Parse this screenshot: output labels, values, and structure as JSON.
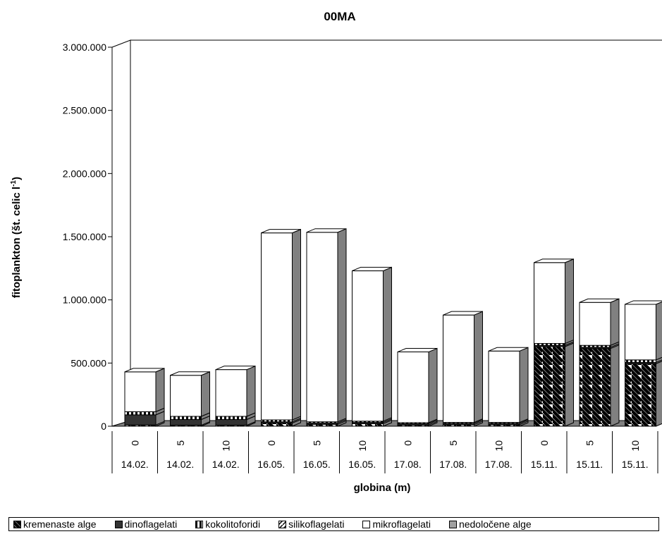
{
  "chart_data": {
    "type": "bar",
    "stacked": true,
    "three_d": true,
    "title": "00MA",
    "xlabel": "globina (m)",
    "ylabel": "fitoplankton (št. celic l",
    "ylabel_sup": "-1",
    "ylabel_close": ")",
    "ylim": [
      0,
      3000000
    ],
    "yticks": [
      "0",
      "500.000",
      "1.000.000",
      "1.500.000",
      "2.000.000",
      "2.500.000",
      "3.000.000"
    ],
    "ytick_values": [
      0,
      500000,
      1000000,
      1500000,
      2000000,
      2500000,
      3000000
    ],
    "categories": [
      "0",
      "5",
      "10",
      "0",
      "5",
      "10",
      "0",
      "5",
      "10",
      "0",
      "5",
      "10"
    ],
    "dates": [
      "14.02.",
      "14.02.",
      "14.02.",
      "16.05.",
      "16.05.",
      "16.05.",
      "17.08.",
      "17.08.",
      "17.08.",
      "15.11.",
      "15.11.",
      "15.11."
    ],
    "series": [
      {
        "name": "kremenaste alge",
        "values": [
          10000,
          8000,
          8000,
          25000,
          15000,
          20000,
          10000,
          12000,
          12000,
          630000,
          615000,
          495000
        ]
      },
      {
        "name": "dinoflagelati",
        "values": [
          80000,
          45000,
          45000,
          10000,
          10000,
          10000,
          10000,
          10000,
          10000,
          10000,
          10000,
          10000
        ]
      },
      {
        "name": "kokolitoforidi",
        "values": [
          25000,
          25000,
          25000,
          15000,
          10000,
          10000,
          8000,
          8000,
          8000,
          15000,
          15000,
          20000
        ]
      },
      {
        "name": "silikoflagelati",
        "values": [
          0,
          0,
          0,
          0,
          0,
          0,
          0,
          0,
          0,
          0,
          0,
          0
        ]
      },
      {
        "name": "mikroflagelati",
        "values": [
          315000,
          325000,
          370000,
          1480000,
          1500000,
          1190000,
          560000,
          850000,
          565000,
          640000,
          340000,
          440000
        ]
      },
      {
        "name": "nedoločene alge",
        "values": [
          0,
          0,
          0,
          0,
          0,
          0,
          0,
          0,
          0,
          0,
          0,
          0
        ]
      }
    ],
    "legend_position": "bottom",
    "grid": false
  }
}
